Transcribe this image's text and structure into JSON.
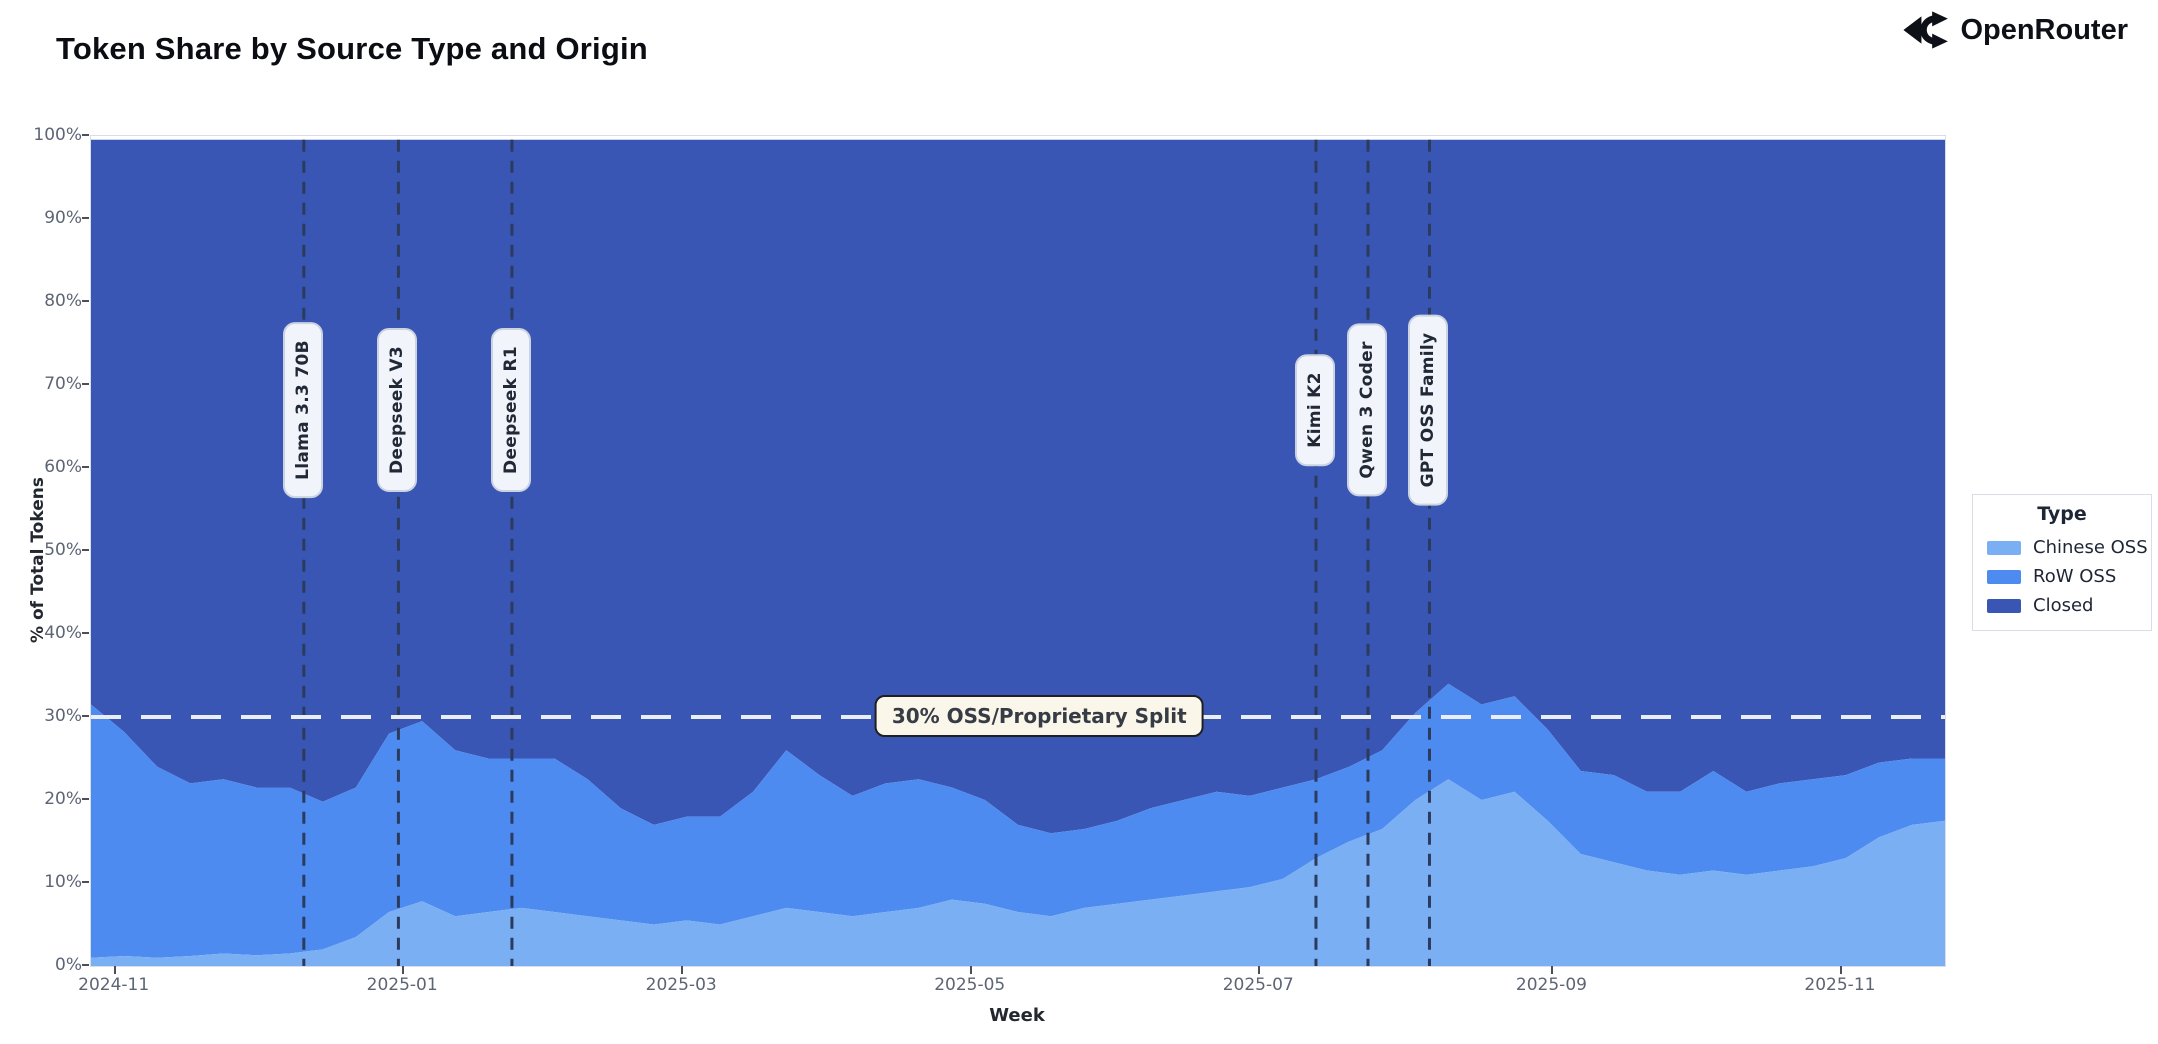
{
  "header": {
    "title": "Token Share by Source Type and Origin",
    "brand": "OpenRouter"
  },
  "chart_data": {
    "type": "area",
    "stacked": true,
    "normalized_percent": true,
    "title": "Token Share by Source Type and Origin",
    "xlabel": "Week",
    "ylabel": "% of Total Tokens",
    "ylim": [
      0,
      100
    ],
    "grid": false,
    "x_domain": [
      "2024-10-27",
      "2025-11-23"
    ],
    "stack_top_pct": 99.55,
    "y_ticks": [
      {
        "label": "0%",
        "value": 0
      },
      {
        "label": "10%",
        "value": 10
      },
      {
        "label": "20%",
        "value": 20
      },
      {
        "label": "30%",
        "value": 30
      },
      {
        "label": "40%",
        "value": 40
      },
      {
        "label": "50%",
        "value": 50
      },
      {
        "label": "60%",
        "value": 60
      },
      {
        "label": "70%",
        "value": 70
      },
      {
        "label": "80%",
        "value": 80
      },
      {
        "label": "90%",
        "value": 90
      },
      {
        "label": "100%",
        "value": 100
      }
    ],
    "x_ticks": [
      {
        "label": "2024-11",
        "date": "2024-11-01"
      },
      {
        "label": "2025-01",
        "date": "2025-01-01"
      },
      {
        "label": "2025-03",
        "date": "2025-03-01"
      },
      {
        "label": "2025-05",
        "date": "2025-05-01"
      },
      {
        "label": "2025-07",
        "date": "2025-07-01"
      },
      {
        "label": "2025-09",
        "date": "2025-09-01"
      },
      {
        "label": "2025-11",
        "date": "2025-11-01"
      }
    ],
    "x": [
      "2024-10-27",
      "2024-11-03",
      "2024-11-10",
      "2024-11-17",
      "2024-11-24",
      "2024-12-01",
      "2024-12-08",
      "2024-12-15",
      "2024-12-22",
      "2024-12-29",
      "2025-01-05",
      "2025-01-12",
      "2025-01-19",
      "2025-01-26",
      "2025-02-02",
      "2025-02-09",
      "2025-02-16",
      "2025-02-23",
      "2025-03-02",
      "2025-03-09",
      "2025-03-16",
      "2025-03-23",
      "2025-03-30",
      "2025-04-06",
      "2025-04-13",
      "2025-04-20",
      "2025-04-27",
      "2025-05-04",
      "2025-05-11",
      "2025-05-18",
      "2025-05-25",
      "2025-06-01",
      "2025-06-08",
      "2025-06-15",
      "2025-06-22",
      "2025-06-29",
      "2025-07-06",
      "2025-07-13",
      "2025-07-20",
      "2025-07-27",
      "2025-08-03",
      "2025-08-10",
      "2025-08-17",
      "2025-08-24",
      "2025-08-31",
      "2025-09-07",
      "2025-09-14",
      "2025-09-21",
      "2025-09-28",
      "2025-10-05",
      "2025-10-12",
      "2025-10-19",
      "2025-10-26",
      "2025-11-02",
      "2025-11-09",
      "2025-11-16",
      "2025-11-23"
    ],
    "series": [
      {
        "name": "Chinese OSS",
        "color": "#7aaff3",
        "values": [
          1.0,
          1.2,
          1.0,
          1.2,
          1.5,
          1.3,
          1.5,
          2.0,
          3.5,
          6.5,
          7.8,
          6.0,
          6.5,
          7.0,
          6.5,
          6.0,
          5.5,
          5.0,
          5.5,
          5.0,
          6.0,
          7.0,
          6.5,
          6.0,
          6.5,
          7.0,
          8.0,
          7.5,
          6.5,
          6.0,
          7.0,
          7.5,
          8.0,
          8.5,
          9.0,
          9.5,
          10.5,
          13.0,
          15.0,
          16.5,
          20.0,
          22.5,
          20.0,
          21.0,
          17.5,
          13.5,
          12.5,
          11.5,
          11.0,
          11.5,
          11.0,
          11.5,
          12.0,
          13.0,
          15.5,
          17.0,
          17.5
        ]
      },
      {
        "name": "RoW OSS",
        "color": "#4d8bf0",
        "values": [
          30.5,
          27.0,
          23.0,
          20.8,
          21.0,
          20.2,
          20.0,
          17.8,
          18.0,
          21.5,
          21.7,
          20.0,
          18.5,
          18.0,
          18.5,
          16.5,
          13.5,
          12.0,
          12.5,
          13.0,
          15.0,
          19.0,
          16.5,
          14.5,
          15.5,
          15.5,
          13.5,
          12.5,
          10.5,
          10.0,
          9.5,
          10.0,
          11.0,
          11.5,
          12.0,
          11.0,
          11.0,
          9.5,
          9.0,
          9.5,
          10.5,
          11.5,
          11.5,
          11.5,
          11.0,
          10.0,
          10.5,
          9.5,
          10.0,
          12.0,
          10.0,
          10.5,
          10.5,
          10.0,
          9.0,
          8.0,
          7.5
        ]
      },
      {
        "name": "Closed",
        "color": "#3a56b5",
        "values": [
          68.5,
          71.8,
          76.0,
          78.0,
          77.5,
          78.5,
          78.5,
          80.2,
          78.5,
          72.0,
          70.5,
          74.0,
          75.0,
          75.0,
          75.0,
          77.5,
          81.0,
          83.0,
          82.0,
          82.0,
          79.0,
          74.0,
          77.0,
          79.5,
          78.0,
          77.5,
          78.5,
          80.0,
          83.0,
          84.0,
          83.5,
          82.5,
          81.0,
          80.0,
          79.0,
          79.5,
          78.5,
          77.5,
          76.0,
          74.0,
          69.5,
          66.0,
          68.5,
          67.5,
          71.5,
          76.5,
          77.0,
          79.0,
          79.0,
          76.5,
          79.0,
          78.0,
          77.5,
          77.0,
          75.5,
          75.0,
          75.0
        ]
      }
    ],
    "legend": {
      "title": "Type",
      "position": "right",
      "entries": [
        "Chinese OSS",
        "RoW OSS",
        "Closed"
      ]
    },
    "annotations": {
      "events": [
        {
          "label": "Llama 3.3 70B",
          "date": "2024-12-11"
        },
        {
          "label": "Deepseek V3",
          "date": "2024-12-31"
        },
        {
          "label": "Deepseek R1",
          "date": "2025-01-24"
        },
        {
          "label": "Kimi K2",
          "date": "2025-07-13"
        },
        {
          "label": "Qwen 3 Coder",
          "date": "2025-07-24"
        },
        {
          "label": "GPT OSS Family",
          "date": "2025-08-06"
        }
      ],
      "event_line_color": "#2b3b5e",
      "hline": {
        "label": "30% OSS/Proprietary Split",
        "y": 30,
        "line_color": "#eaeef4",
        "label_x_frac": 0.512
      }
    }
  }
}
